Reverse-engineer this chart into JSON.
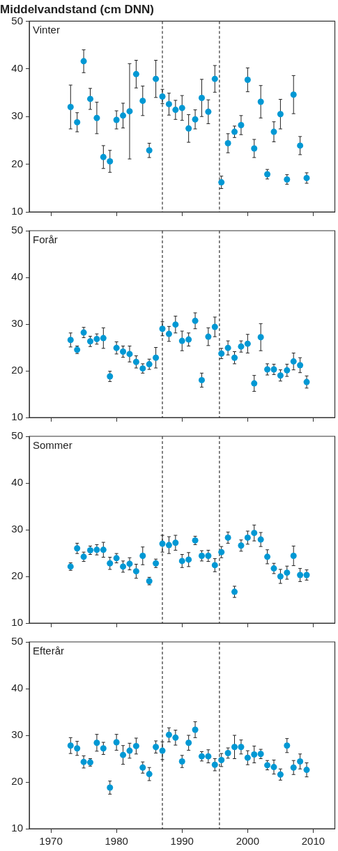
{
  "chart_data": [
    {
      "type": "scatter",
      "title": "Middelvandstand (cm DNN)",
      "annotations": [
        "Vinter"
      ],
      "color": "#0098d4",
      "marker": "circle",
      "tick_labels": "y",
      "x": [
        1973,
        1974,
        1975,
        1976,
        1977,
        1978,
        1979,
        1980,
        1981,
        1982,
        1983,
        1984,
        1985,
        1986,
        1987,
        1988,
        1989,
        1990,
        1991,
        1992,
        1993,
        1994,
        1995,
        1996,
        1997,
        1998,
        1999,
        2000,
        2001,
        2002,
        2003,
        2004,
        2005,
        2006,
        2007,
        2008,
        2009
      ],
      "values": [
        32.0,
        28.8,
        41.6,
        33.7,
        29.7,
        21.5,
        20.6,
        29.3,
        30.2,
        31.1,
        38.9,
        33.3,
        22.9,
        37.9,
        34.2,
        32.6,
        31.4,
        31.8,
        27.5,
        29.4,
        33.9,
        31.0,
        37.9,
        16.2,
        24.4,
        26.8,
        28.2,
        37.7,
        23.3,
        33.1,
        17.9,
        26.8,
        30.5,
        16.8,
        34.6,
        23.9,
        17.1
      ],
      "errors": [
        4.6,
        2.0,
        2.4,
        2.2,
        3.3,
        2.4,
        2.3,
        1.9,
        2.6,
        10.0,
        2.9,
        3.1,
        1.5,
        3.9,
        1.5,
        2.3,
        2.0,
        2.6,
        2.9,
        2.0,
        3.9,
        2.5,
        2.8,
        1.3,
        2.0,
        1.2,
        2.0,
        2.5,
        1.9,
        3.4,
        1.0,
        2.1,
        3.1,
        1.0,
        4.0,
        1.9,
        1.1
      ],
      "xlim": [
        1966.7,
        2013.3
      ],
      "xticks": [
        1970,
        1980,
        1990,
        2000,
        2010
      ],
      "ylim": [
        10,
        50
      ],
      "yticks": [
        10,
        20,
        30,
        40,
        50
      ],
      "ref_lines": [
        {
          "axis": "x",
          "value": 1987,
          "color": "#333333",
          "line_style": "dashed"
        },
        {
          "axis": "x",
          "value": 1995.7,
          "color": "#333333",
          "line_style": "dashed"
        }
      ]
    },
    {
      "type": "scatter",
      "annotations": [
        "Forår"
      ],
      "color": "#0098d4",
      "marker": "circle",
      "tick_labels": "y",
      "x": [
        1973,
        1974,
        1975,
        1976,
        1977,
        1978,
        1979,
        1980,
        1981,
        1982,
        1983,
        1984,
        1985,
        1986,
        1987,
        1988,
        1989,
        1990,
        1991,
        1992,
        1993,
        1994,
        1995,
        1996,
        1997,
        1998,
        1999,
        2000,
        2001,
        2002,
        2003,
        2004,
        2005,
        2006,
        2007,
        2008,
        2009
      ],
      "values": [
        26.6,
        24.5,
        28.2,
        26.3,
        26.8,
        27.0,
        18.8,
        24.9,
        24.1,
        23.6,
        21.9,
        20.5,
        21.4,
        22.8,
        29.0,
        27.9,
        29.9,
        26.4,
        26.7,
        30.7,
        18.0,
        27.3,
        29.4,
        23.7,
        24.9,
        22.8,
        25.2,
        25.8,
        17.3,
        27.2,
        20.3,
        20.3,
        19.0,
        20.1,
        22.0,
        21.2,
        17.6
      ],
      "errors": [
        1.5,
        0.8,
        1.1,
        1.1,
        1.1,
        2.2,
        1.1,
        1.3,
        1.2,
        1.7,
        1.3,
        1.0,
        1.1,
        2.2,
        1.5,
        1.6,
        1.8,
        2.1,
        1.4,
        1.7,
        1.5,
        1.9,
        2.1,
        1.1,
        1.5,
        1.3,
        1.2,
        2.0,
        1.7,
        2.9,
        1.2,
        1.1,
        1.2,
        1.3,
        1.8,
        1.6,
        1.3
      ],
      "xlim": [
        1966.7,
        2013.3
      ],
      "xticks": [
        1970,
        1980,
        1990,
        2000,
        2010
      ],
      "ylim": [
        10,
        50
      ],
      "yticks": [
        10,
        20,
        30,
        40,
        50
      ],
      "ref_lines": [
        {
          "axis": "x",
          "value": 1987,
          "color": "#333333",
          "line_style": "dashed"
        },
        {
          "axis": "x",
          "value": 1995.7,
          "color": "#333333",
          "line_style": "dashed"
        }
      ]
    },
    {
      "type": "scatter",
      "annotations": [
        "Sommer"
      ],
      "color": "#0098d4",
      "marker": "circle",
      "tick_labels": "y",
      "x": [
        1973,
        1974,
        1975,
        1976,
        1977,
        1978,
        1979,
        1980,
        1981,
        1982,
        1983,
        1984,
        1985,
        1986,
        1987,
        1988,
        1989,
        1990,
        1991,
        1992,
        1993,
        1994,
        1995,
        1996,
        1997,
        1998,
        1999,
        2000,
        2001,
        2002,
        2003,
        2004,
        2005,
        2006,
        2007,
        2008,
        2009
      ],
      "values": [
        22.1,
        26.0,
        24.2,
        25.6,
        25.7,
        25.7,
        22.8,
        23.9,
        22.1,
        22.7,
        21.1,
        24.4,
        19.0,
        22.8,
        27.0,
        26.7,
        27.2,
        23.3,
        23.6,
        27.7,
        24.4,
        24.4,
        22.4,
        25.2,
        28.3,
        16.7,
        26.6,
        28.3,
        29.3,
        27.9,
        24.2,
        21.7,
        20.0,
        20.8,
        24.4,
        20.3,
        20.3
      ],
      "errors": [
        0.8,
        1.1,
        1.0,
        0.9,
        1.1,
        1.6,
        1.3,
        1.0,
        1.2,
        1.3,
        1.5,
        1.9,
        0.8,
        0.9,
        1.8,
        1.8,
        1.6,
        1.4,
        1.5,
        0.9,
        1.1,
        1.2,
        1.4,
        1.2,
        1.2,
        1.2,
        1.2,
        1.4,
        1.7,
        1.5,
        1.5,
        1.1,
        1.5,
        1.4,
        2.1,
        1.4,
        1.1
      ],
      "xlim": [
        1966.7,
        2013.3
      ],
      "xticks": [
        1970,
        1980,
        1990,
        2000,
        2010
      ],
      "ylim": [
        10,
        50
      ],
      "yticks": [
        10,
        20,
        30,
        40,
        50
      ],
      "ref_lines": [
        {
          "axis": "x",
          "value": 1987,
          "color": "#333333",
          "line_style": "dashed"
        },
        {
          "axis": "x",
          "value": 1995.7,
          "color": "#333333",
          "line_style": "dashed"
        }
      ]
    },
    {
      "type": "scatter",
      "annotations": [
        "Efterår"
      ],
      "color": "#0098d4",
      "marker": "circle",
      "x": [
        1973,
        1974,
        1975,
        1976,
        1977,
        1978,
        1979,
        1980,
        1981,
        1982,
        1983,
        1984,
        1985,
        1986,
        1987,
        1988,
        1989,
        1990,
        1991,
        1992,
        1993,
        1994,
        1995,
        1996,
        1997,
        1998,
        1999,
        2000,
        2001,
        2002,
        2003,
        2004,
        2005,
        2006,
        2007,
        2008,
        2009
      ],
      "values": [
        27.8,
        27.2,
        24.3,
        24.2,
        28.4,
        27.2,
        18.8,
        28.5,
        25.8,
        26.7,
        27.7,
        23.1,
        21.7,
        27.5,
        26.7,
        30.1,
        29.5,
        24.4,
        28.4,
        31.2,
        25.5,
        25.5,
        23.7,
        24.7,
        26.2,
        27.5,
        27.5,
        25.2,
        25.9,
        26.0,
        23.6,
        23.2,
        21.6,
        27.8,
        23.1,
        24.4,
        22.6
      ],
      "errors": [
        1.7,
        1.5,
        1.3,
        0.8,
        1.8,
        1.3,
        1.4,
        1.7,
        2.0,
        1.6,
        1.7,
        1.2,
        1.4,
        1.3,
        1.9,
        1.5,
        1.6,
        1.3,
        1.6,
        1.7,
        1.0,
        1.4,
        1.3,
        1.4,
        1.1,
        2.5,
        1.5,
        1.5,
        1.8,
        1.0,
        1.0,
        1.5,
        1.2,
        1.5,
        1.5,
        1.6,
        1.5
      ],
      "xlim": [
        1966.7,
        2013.3
      ],
      "xticks": [
        1970,
        1980,
        1990,
        2000,
        2010
      ],
      "ylim": [
        10,
        50
      ],
      "yticks": [
        10,
        20,
        30,
        40,
        50
      ],
      "ref_lines": [
        {
          "axis": "x",
          "value": 1987,
          "color": "#333333",
          "line_style": "dashed"
        },
        {
          "axis": "x",
          "value": 1995.7,
          "color": "#333333",
          "line_style": "dashed"
        }
      ]
    }
  ]
}
